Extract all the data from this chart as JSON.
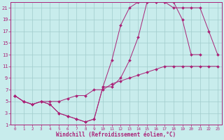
{
  "title": "",
  "xlabel": "Windchill (Refroidissement éolien,°C)",
  "background_color": "#c8ecec",
  "line_color": "#aa2277",
  "grid_color": "#a0cccc",
  "xlim": [
    -0.5,
    23.5
  ],
  "ylim": [
    1,
    22
  ],
  "xticks": [
    0,
    1,
    2,
    3,
    4,
    5,
    6,
    7,
    8,
    9,
    10,
    11,
    12,
    13,
    14,
    15,
    16,
    17,
    18,
    19,
    20,
    21,
    22,
    23
  ],
  "yticks": [
    1,
    3,
    5,
    7,
    9,
    11,
    13,
    15,
    17,
    19,
    21
  ],
  "line1_x": [
    0,
    1,
    2,
    3,
    4,
    5,
    6,
    7,
    8,
    9,
    10,
    11,
    12,
    13,
    14,
    15,
    16,
    17,
    18,
    19,
    20,
    21,
    22,
    23
  ],
  "line1_y": [
    6,
    5,
    4.5,
    5,
    5,
    5,
    5.5,
    6,
    6,
    7,
    7,
    8,
    8.5,
    9,
    9.5,
    10,
    10.5,
    11,
    11,
    11,
    11,
    11,
    11,
    11
  ],
  "line2_x": [
    0,
    1,
    2,
    3,
    4,
    5,
    6,
    7,
    8,
    9,
    10,
    11,
    12,
    13,
    14,
    15,
    16,
    17,
    18,
    19,
    20,
    21
  ],
  "line2_y": [
    6,
    5,
    4.5,
    5,
    4.5,
    3,
    2.5,
    2,
    1.5,
    2,
    7.5,
    12,
    18,
    21,
    22,
    22,
    22,
    22,
    22,
    19,
    13,
    13
  ],
  "line3_x": [
    0,
    1,
    2,
    3,
    4,
    5,
    6,
    7,
    8,
    9,
    10,
    11,
    12,
    13,
    14,
    15,
    16,
    17,
    18,
    19,
    20,
    21,
    22,
    23
  ],
  "line3_y": [
    6,
    5,
    4.5,
    5,
    4.5,
    3,
    2.5,
    2,
    1.5,
    2,
    7.5,
    7.5,
    9,
    12,
    16,
    22,
    22,
    22,
    21,
    21,
    21,
    21,
    17,
    13
  ]
}
